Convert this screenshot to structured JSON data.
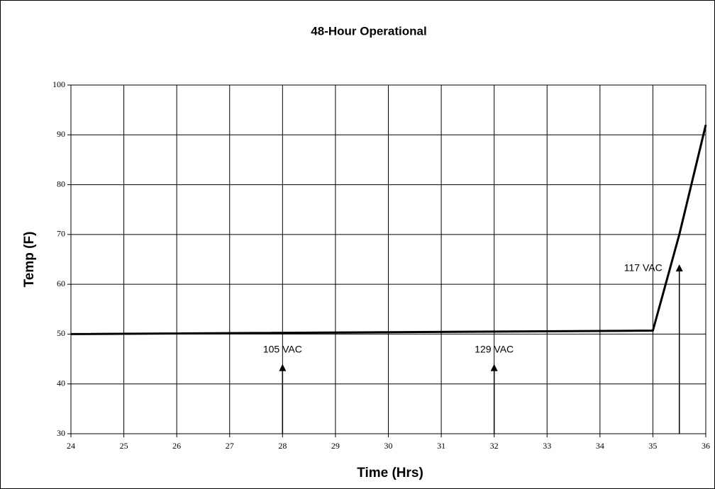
{
  "chart_data": {
    "type": "line",
    "title": "48-Hour Operational",
    "x_label": "Time (Hrs)",
    "y_label": "Temp (F)",
    "x": [
      24,
      35,
      35.5,
      36
    ],
    "values": [
      50,
      50.7,
      70,
      92
    ],
    "color": "#000000",
    "xlim": [
      24,
      36
    ],
    "xticks": [
      24,
      25,
      26,
      27,
      28,
      29,
      30,
      31,
      32,
      33,
      34,
      35,
      36
    ],
    "ylim": [
      30,
      100
    ],
    "yticks": [
      30,
      40,
      50,
      60,
      70,
      80,
      90,
      100
    ],
    "grid": true,
    "annotations": [
      {
        "text": "105 VAC",
        "x": 28,
        "y": 44
      },
      {
        "text": "129 VAC",
        "x": 32,
        "y": 44
      },
      {
        "text": "117 VAC",
        "x": 35.5,
        "y": 64
      }
    ]
  }
}
